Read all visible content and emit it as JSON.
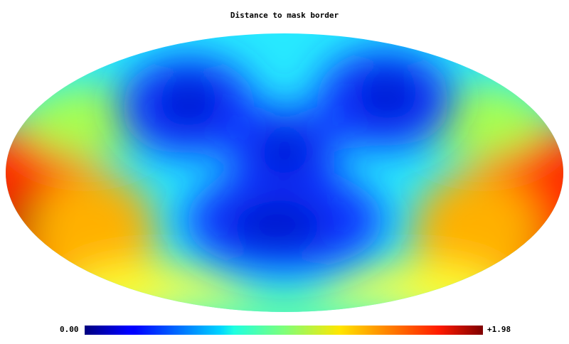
{
  "title": "Distance to mask border",
  "colorbar": {
    "min_label": "0.00",
    "max_label": "+1.98",
    "min_value": 0.0,
    "max_value": 1.98,
    "colormap": "jet"
  },
  "projection": "mollweide",
  "background_color": "#ffffff"
}
